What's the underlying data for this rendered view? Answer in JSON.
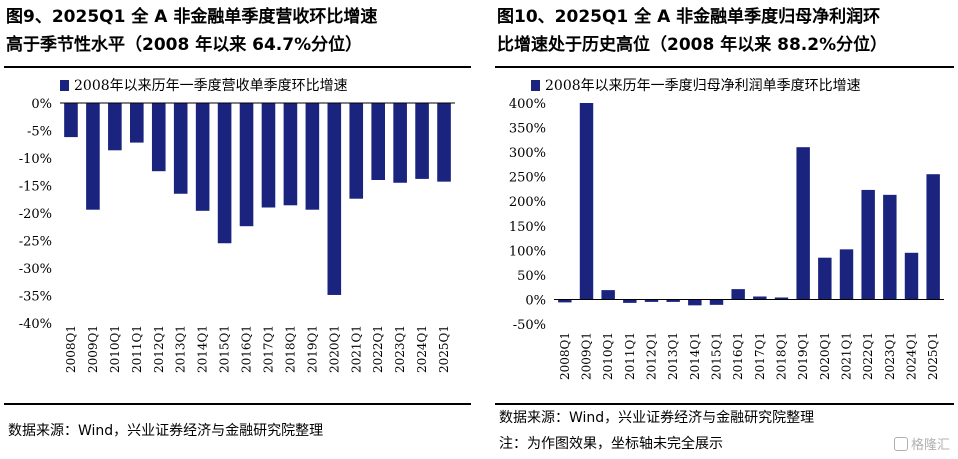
{
  "panels": [
    {
      "title_line1": "图9、2025Q1 全 A 非金融单季度营收环比增速",
      "title_line2": "高于季节性水平（2008 年以来 64.7%分位）",
      "source": "数据来源：Wind，兴业证券经济与金融研究院整理",
      "note": ""
    },
    {
      "title_line1": "图10、2025Q1 全 A 非金融单季度归母净利润环",
      "title_line2": "比增速处于历史高位（2008 年以来 88.2%分位）",
      "source": "数据来源：Wind，兴业证券经济与金融研究院整理",
      "note": "注：为作图效果，坐标轴未完全展示"
    }
  ],
  "watermark": "格隆汇",
  "colors": {
    "bar": "#1a237e"
  },
  "chart_data": [
    {
      "type": "bar",
      "legend": "2008年以来历年一季度营收单季度环比增速",
      "categories": [
        "2008Q1",
        "2009Q1",
        "2010Q1",
        "2011Q1",
        "2012Q1",
        "2013Q1",
        "2014Q1",
        "2015Q1",
        "2016Q1",
        "2017Q1",
        "2018Q1",
        "2019Q1",
        "2020Q1",
        "2021Q1",
        "2022Q1",
        "2023Q1",
        "2024Q1",
        "2025Q1"
      ],
      "values": [
        -6.2,
        -19.4,
        -8.6,
        -7.2,
        -12.4,
        -16.5,
        -19.6,
        -25.5,
        -22.4,
        -19.0,
        -18.6,
        -19.4,
        -34.9,
        -17.4,
        -14.0,
        -14.5,
        -13.8,
        -14.3
      ],
      "ylim": [
        -40,
        0
      ],
      "yticks": [
        "0%",
        "-5%",
        "-10%",
        "-15%",
        "-20%",
        "-25%",
        "-30%",
        "-35%",
        "-40%"
      ],
      "legend_position": "top-left"
    },
    {
      "type": "bar",
      "legend": "2008年以来历年一季度归母净利润单季度环比增速",
      "categories": [
        "2008Q1",
        "2009Q1",
        "2010Q1",
        "2011Q1",
        "2012Q1",
        "2013Q1",
        "2014Q1",
        "2015Q1",
        "2016Q1",
        "2017Q1",
        "2018Q1",
        "2019Q1",
        "2020Q1",
        "2021Q1",
        "2022Q1",
        "2023Q1",
        "2024Q1",
        "2025Q1"
      ],
      "values": [
        -6,
        400,
        19,
        -7,
        -5,
        -5,
        -12,
        -11,
        21,
        6,
        4,
        310,
        85,
        102,
        223,
        213,
        95,
        255
      ],
      "ylim": [
        -50,
        400
      ],
      "yticks": [
        "400%",
        "350%",
        "300%",
        "250%",
        "200%",
        "150%",
        "100%",
        "50%",
        "0%",
        "-50%"
      ],
      "legend_position": "top-left"
    }
  ]
}
